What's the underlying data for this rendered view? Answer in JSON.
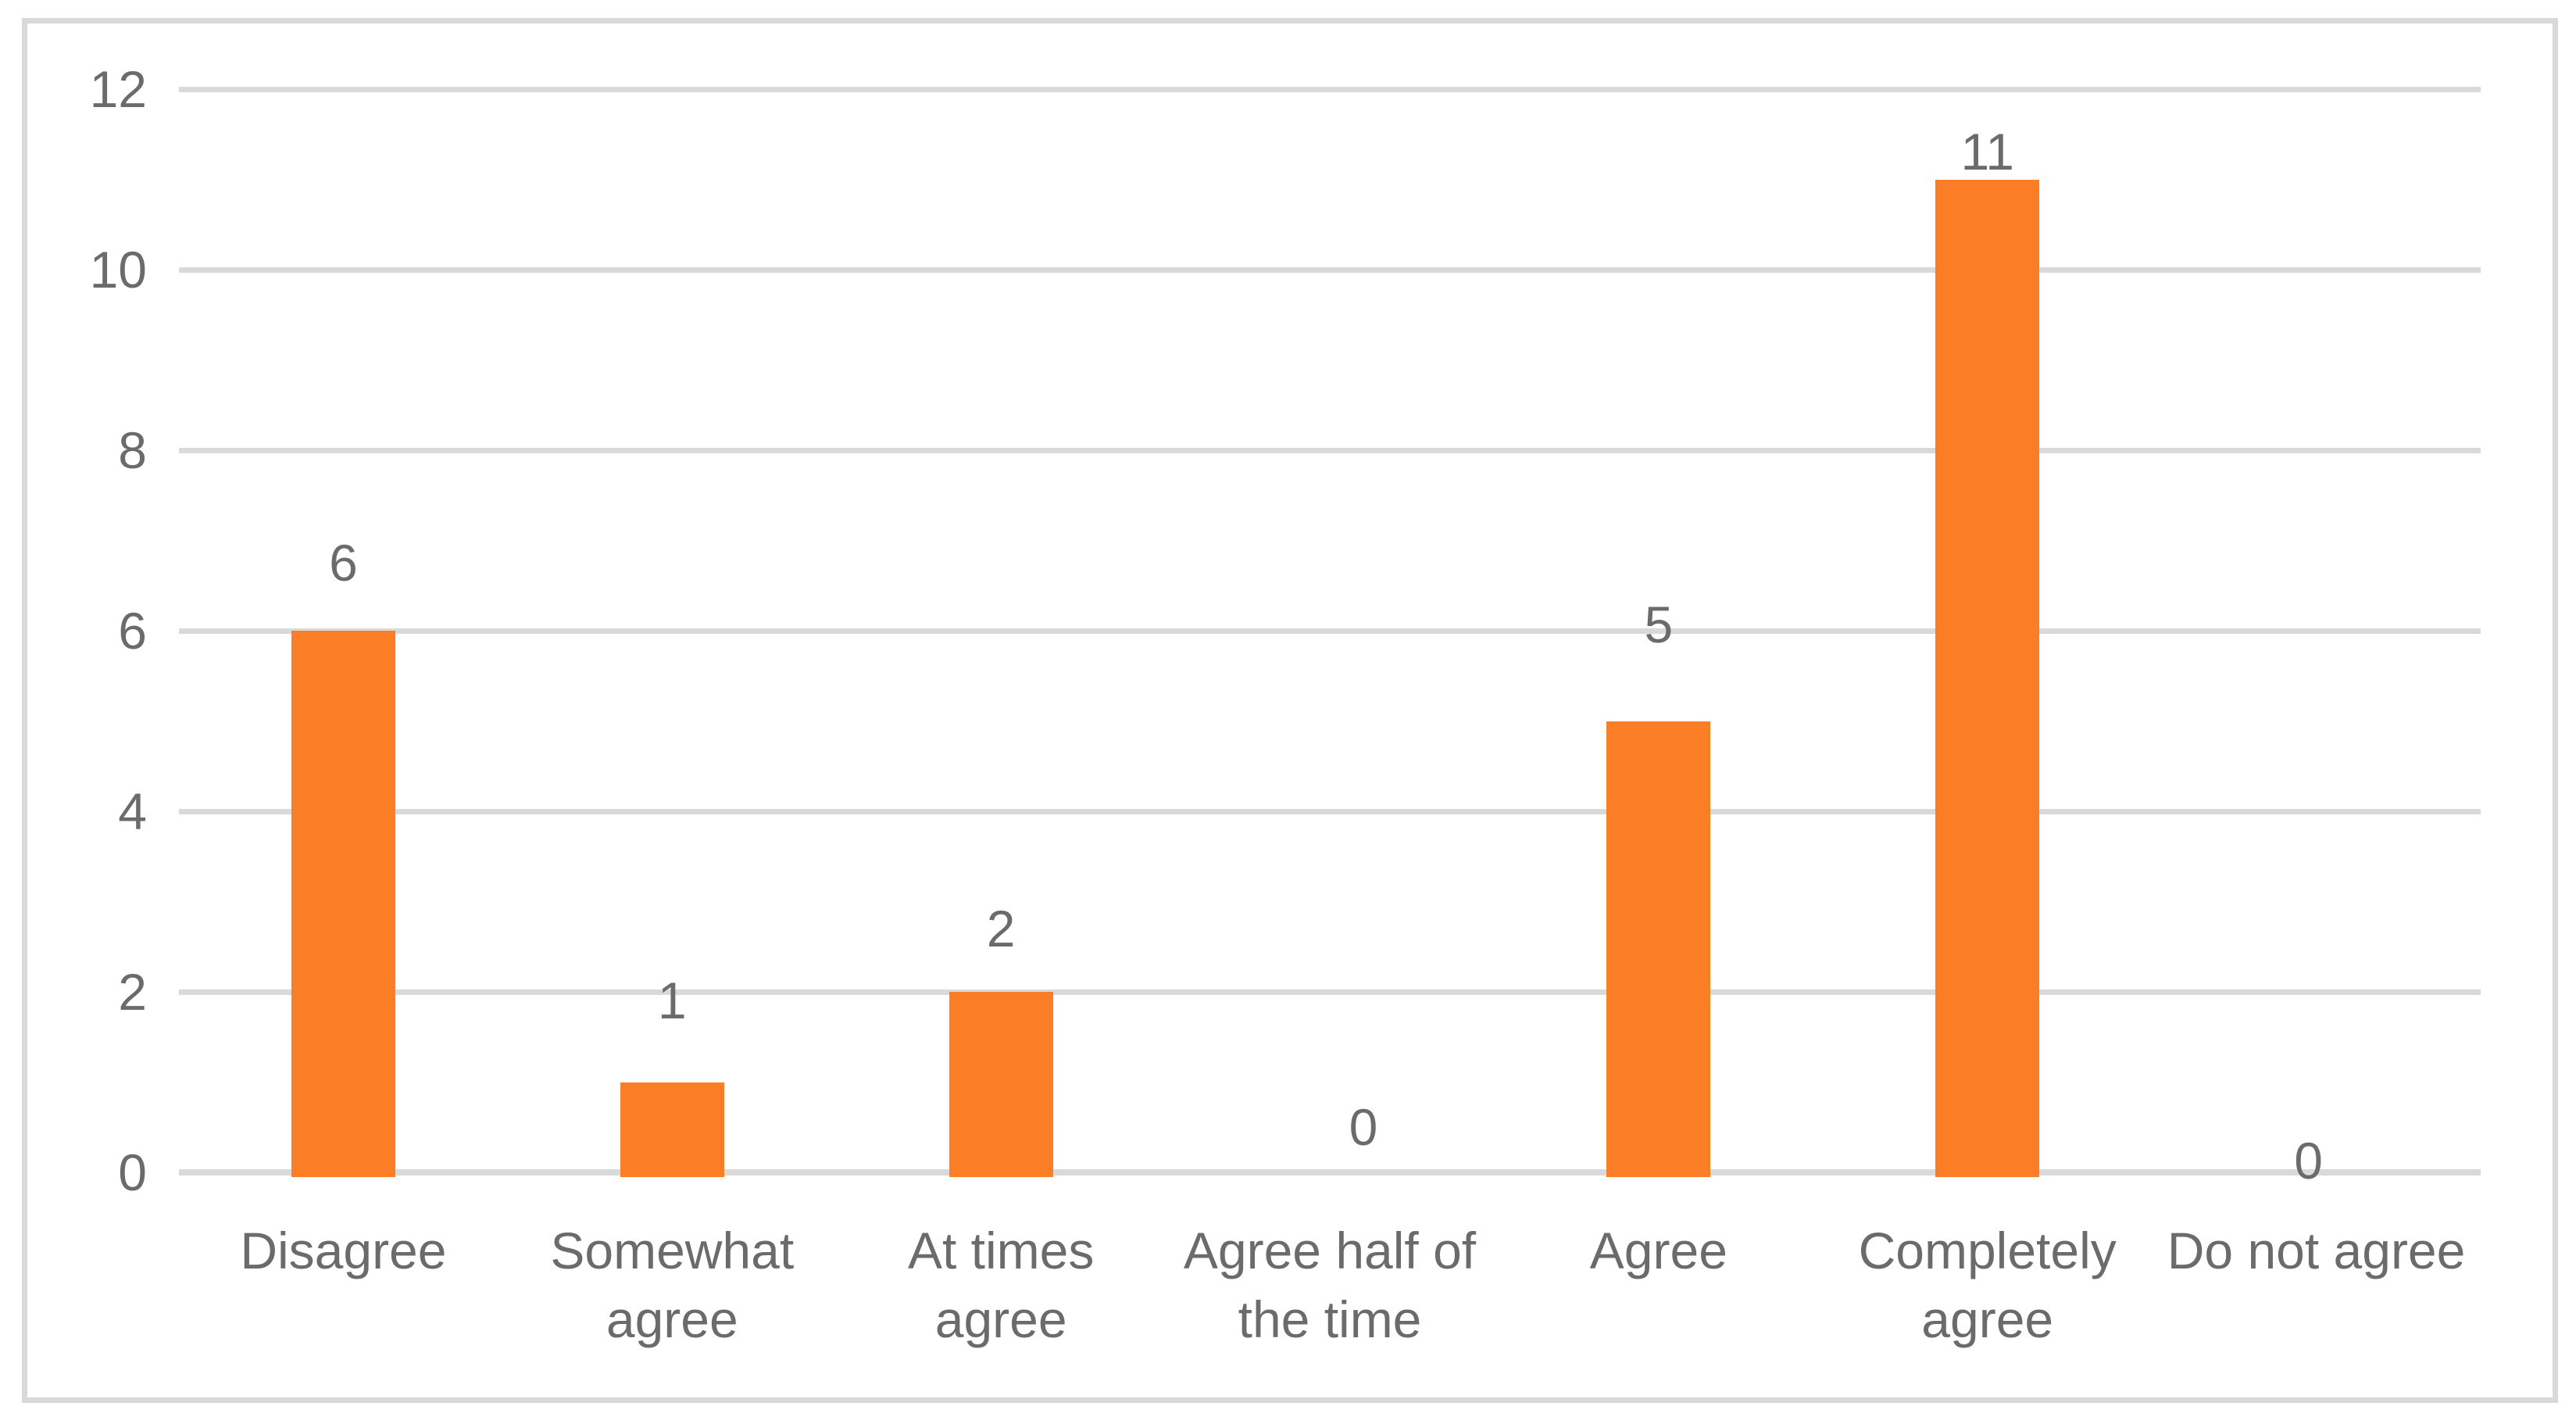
{
  "chart_data": {
    "type": "bar",
    "title": "",
    "xlabel": "",
    "ylabel": "",
    "categories": [
      "Disagree",
      "Somewhat agree",
      "At times agree",
      "Agree half of the time",
      "Agree",
      "Completely agree",
      "Do not agree"
    ],
    "values": [
      6,
      1,
      2,
      0,
      5,
      11,
      0
    ],
    "data_labels": [
      "6",
      "1",
      "2",
      "0",
      "5",
      "11",
      "0"
    ],
    "ylim": [
      0,
      12
    ],
    "yticks": [
      0,
      2,
      4,
      6,
      8,
      10,
      12
    ],
    "ytick_labels": [
      "0",
      "2",
      "4",
      "6",
      "8",
      "10",
      "12"
    ],
    "grid": true,
    "legend": false,
    "colors": {
      "bar": "#FB7E26",
      "text": "#6B6B6B",
      "gridline": "#D9D9D9",
      "axis_line": "#D9D9D9",
      "frame_border": "#D9D9D9",
      "background": "#FFFFFF"
    }
  }
}
